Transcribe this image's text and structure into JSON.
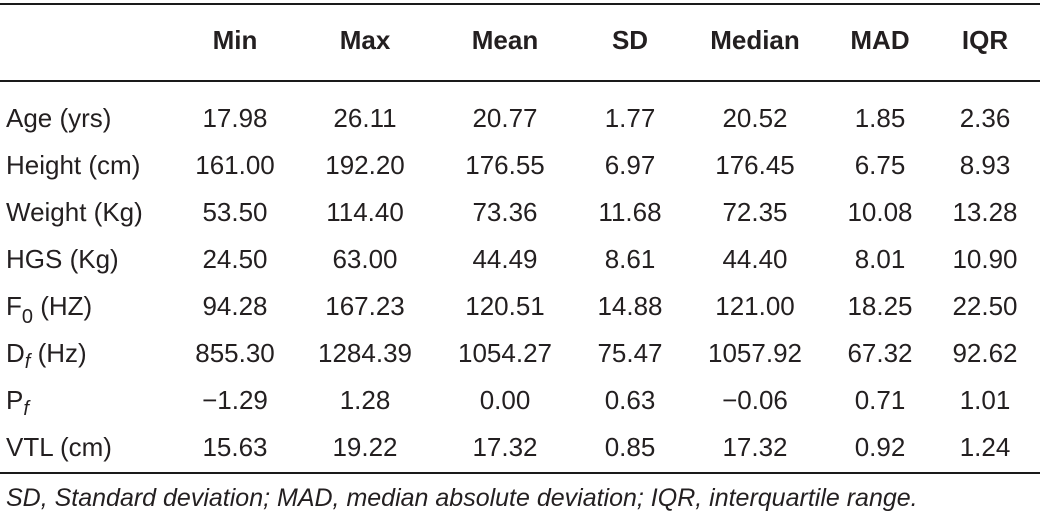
{
  "columns": [
    "",
    "Min",
    "Max",
    "Mean",
    "SD",
    "Median",
    "MAD",
    "IQR"
  ],
  "rows": [
    {
      "label": "Age (yrs)",
      "label_sub": "",
      "label_suffix": "",
      "values": [
        "17.98",
        "26.11",
        "20.77",
        "1.77",
        "20.52",
        "1.85",
        "2.36"
      ]
    },
    {
      "label": "Height (cm)",
      "label_sub": "",
      "label_suffix": "",
      "values": [
        "161.00",
        "192.20",
        "176.55",
        "6.97",
        "176.45",
        "6.75",
        "8.93"
      ]
    },
    {
      "label": "Weight (Kg)",
      "label_sub": "",
      "label_suffix": "",
      "values": [
        "53.50",
        "114.40",
        "73.36",
        "11.68",
        "72.35",
        "10.08",
        "13.28"
      ]
    },
    {
      "label": "HGS (Kg)",
      "label_sub": "",
      "label_suffix": "",
      "values": [
        "24.50",
        "63.00",
        "44.49",
        "8.61",
        "44.40",
        "8.01",
        "10.90"
      ]
    },
    {
      "label": "F",
      "label_sub": "0",
      "label_suffix": " (HZ)",
      "values": [
        "94.28",
        "167.23",
        "120.51",
        "14.88",
        "121.00",
        "18.25",
        "22.50"
      ]
    },
    {
      "label": "D",
      "label_sub": "f",
      "label_suffix": " (Hz)",
      "values": [
        "855.30",
        "1284.39",
        "1054.27",
        "75.47",
        "1057.92",
        "67.32",
        "92.62"
      ]
    },
    {
      "label": "P",
      "label_sub": "f",
      "label_suffix": "",
      "values": [
        "−1.29",
        "1.28",
        "0.00",
        "0.63",
        "−0.06",
        "0.71",
        "1.01"
      ]
    },
    {
      "label": "VTL (cm)",
      "label_sub": "",
      "label_suffix": "",
      "values": [
        "15.63",
        "19.22",
        "17.32",
        "0.85",
        "17.32",
        "0.92",
        "1.24"
      ]
    }
  ],
  "footnote": "SD, Standard deviation; MAD, median absolute deviation; IQR, interquartile range."
}
